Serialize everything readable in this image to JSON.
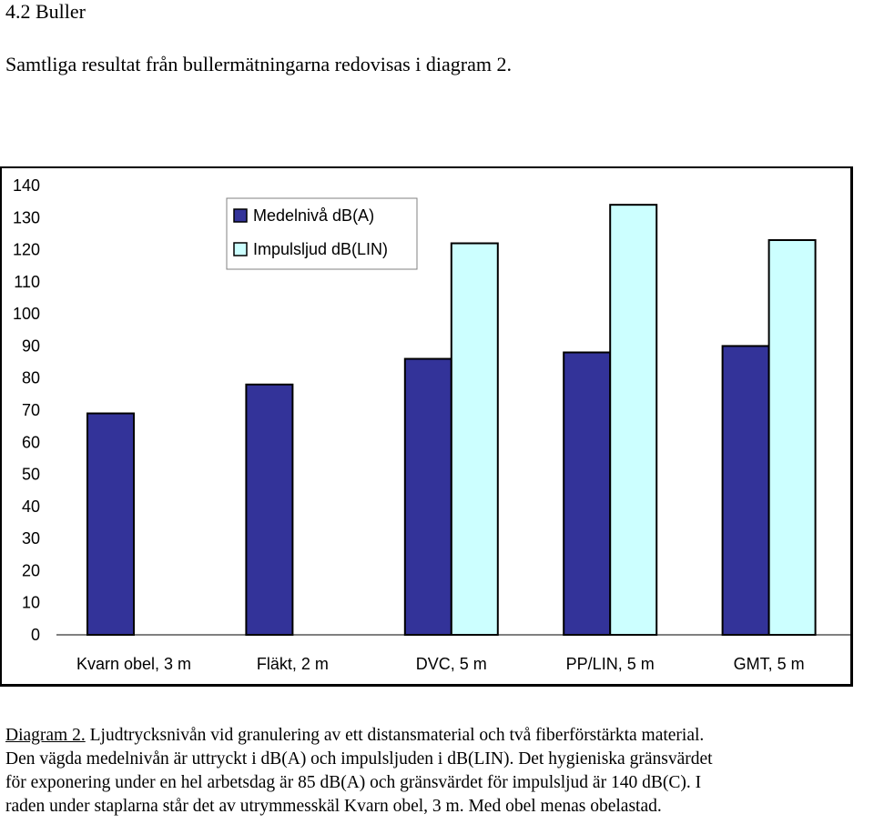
{
  "document": {
    "heading_number": "4.2",
    "heading_title": "Buller",
    "intro": "Samtliga resultat från bullermätningarna redovisas i diagram 2."
  },
  "colors": {
    "medelniva": "#333399",
    "impulsljud": "#ccffff",
    "frame": "#000000"
  },
  "chart_data": {
    "type": "bar",
    "title": "",
    "xlabel": "",
    "ylabel": "",
    "ylim": [
      0,
      140
    ],
    "yticks": [
      0,
      10,
      20,
      30,
      40,
      50,
      60,
      70,
      80,
      90,
      100,
      110,
      120,
      130,
      140
    ],
    "grid": false,
    "legend_position": "top-left",
    "categories": [
      "Kvarn obel, 3 m",
      "Fläkt, 2 m",
      "DVC, 5 m",
      "PP/LIN, 5 m",
      "GMT, 5 m"
    ],
    "series": [
      {
        "name": "Medelnivå dB(A)",
        "color": "#333399",
        "values": [
          69,
          78,
          86,
          88,
          90
        ]
      },
      {
        "name": "Impulsljud dB(LIN)",
        "color": "#ccffff",
        "values": [
          null,
          null,
          122,
          134,
          123
        ]
      }
    ]
  },
  "caption": {
    "ref": "Diagram 2.",
    "line1": " Ljudtrycksnivån vid granulering av ett distansmaterial och två fiberförstärkta material.",
    "line2": "Den vägda medelnivån är uttryckt i dB(A) och impulsljuden i dB(LIN). Det hygieniska gränsvärdet",
    "line3": "för exponering under en hel arbetsdag är 85 dB(A) och gränsvärdet för impulsljud är 140 dB(C). I",
    "line4": "raden under staplarna står det av utrymmesskäl Kvarn obel, 3 m. Med obel menas obelastad."
  }
}
